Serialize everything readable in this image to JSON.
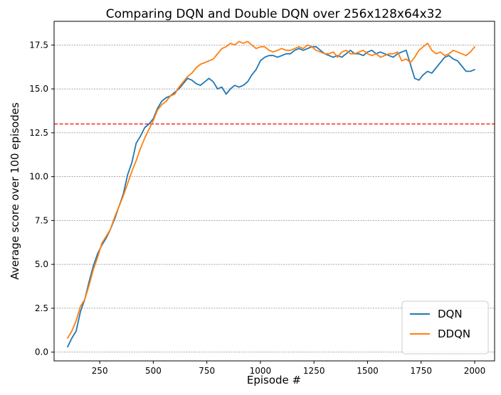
{
  "chart_data": {
    "type": "line",
    "title": "Comparing DQN and Double DQN over 256x128x64x32",
    "xlabel": "Episode #",
    "ylabel": "Average score over 100 episodes",
    "xlim": [
      37,
      2093
    ],
    "ylim": [
      -0.5,
      18.85
    ],
    "xticks": [
      250,
      500,
      750,
      1000,
      1250,
      1500,
      1750,
      2000
    ],
    "xtick_labels": [
      "250",
      "500",
      "750",
      "1000",
      "1250",
      "1500",
      "1750",
      "2000"
    ],
    "yticks": [
      0,
      2.5,
      5,
      7.5,
      10,
      12.5,
      15,
      17.5
    ],
    "ytick_labels": [
      "0.0",
      "2.5",
      "5.0",
      "7.5",
      "10.0",
      "12.5",
      "15.0",
      "17.5"
    ],
    "grid": "horizontal dashed",
    "reference_line": {
      "y": 13,
      "color": "#ff0000",
      "style": "dashed"
    },
    "legend_placement": "bottom-right",
    "series": [
      {
        "name": "DQN",
        "color": "#1f77b4",
        "x": [
          100,
          120,
          140,
          160,
          180,
          200,
          220,
          240,
          260,
          280,
          300,
          320,
          340,
          360,
          380,
          400,
          420,
          440,
          460,
          480,
          500,
          520,
          540,
          560,
          580,
          600,
          620,
          640,
          660,
          680,
          700,
          720,
          740,
          760,
          780,
          800,
          820,
          840,
          860,
          880,
          900,
          920,
          940,
          960,
          980,
          1000,
          1020,
          1040,
          1060,
          1080,
          1100,
          1120,
          1140,
          1160,
          1180,
          1200,
          1220,
          1240,
          1260,
          1280,
          1300,
          1320,
          1340,
          1360,
          1380,
          1400,
          1420,
          1440,
          1460,
          1480,
          1500,
          1520,
          1540,
          1560,
          1580,
          1600,
          1620,
          1640,
          1660,
          1680,
          1700,
          1720,
          1740,
          1760,
          1780,
          1800,
          1820,
          1840,
          1860,
          1880,
          1900,
          1920,
          1940,
          1960,
          1980,
          2000
        ],
        "y": [
          0.3,
          0.8,
          1.2,
          2.3,
          3.0,
          4.0,
          4.9,
          5.6,
          6.1,
          6.5,
          7.0,
          7.6,
          8.3,
          9.0,
          10.1,
          10.8,
          11.9,
          12.3,
          12.8,
          13.0,
          13.3,
          13.9,
          14.3,
          14.5,
          14.6,
          14.8,
          15.0,
          15.3,
          15.6,
          15.5,
          15.3,
          15.2,
          15.4,
          15.6,
          15.4,
          15.0,
          15.1,
          14.7,
          15.0,
          15.2,
          15.1,
          15.2,
          15.4,
          15.8,
          16.1,
          16.6,
          16.8,
          16.9,
          16.9,
          16.8,
          16.9,
          17.0,
          17.0,
          17.2,
          17.3,
          17.2,
          17.3,
          17.4,
          17.4,
          17.2,
          17.0,
          16.9,
          16.8,
          16.9,
          16.8,
          17.0,
          17.2,
          17.0,
          17.0,
          16.9,
          17.1,
          17.2,
          17.0,
          17.1,
          17.0,
          16.9,
          16.8,
          17.0,
          17.1,
          17.2,
          16.4,
          15.6,
          15.5,
          15.8,
          16.0,
          15.9,
          16.2,
          16.5,
          16.8,
          16.9,
          16.7,
          16.6,
          16.3,
          16.0,
          16.0,
          16.1
        ]
      },
      {
        "name": "DDQN",
        "color": "#ff7f0e",
        "x": [
          100,
          120,
          140,
          160,
          180,
          200,
          220,
          240,
          260,
          280,
          300,
          320,
          340,
          360,
          380,
          400,
          420,
          440,
          460,
          480,
          500,
          520,
          540,
          560,
          580,
          600,
          620,
          640,
          660,
          680,
          700,
          720,
          740,
          760,
          780,
          800,
          820,
          840,
          860,
          880,
          900,
          920,
          940,
          960,
          980,
          1000,
          1020,
          1040,
          1060,
          1080,
          1100,
          1120,
          1140,
          1160,
          1180,
          1200,
          1220,
          1240,
          1260,
          1280,
          1300,
          1320,
          1340,
          1360,
          1380,
          1400,
          1420,
          1440,
          1460,
          1480,
          1500,
          1520,
          1540,
          1560,
          1580,
          1600,
          1620,
          1640,
          1660,
          1680,
          1700,
          1720,
          1740,
          1760,
          1780,
          1800,
          1820,
          1840,
          1860,
          1880,
          1900,
          1920,
          1940,
          1960,
          1980,
          2000
        ],
        "y": [
          0.8,
          1.2,
          1.8,
          2.6,
          3.0,
          3.8,
          4.7,
          5.4,
          6.2,
          6.6,
          7.0,
          7.7,
          8.3,
          8.9,
          9.6,
          10.3,
          10.9,
          11.6,
          12.2,
          12.7,
          13.2,
          13.8,
          14.1,
          14.3,
          14.6,
          14.7,
          15.1,
          15.4,
          15.7,
          15.9,
          16.2,
          16.4,
          16.5,
          16.6,
          16.7,
          17.0,
          17.3,
          17.4,
          17.6,
          17.5,
          17.7,
          17.6,
          17.7,
          17.5,
          17.3,
          17.4,
          17.4,
          17.2,
          17.1,
          17.2,
          17.3,
          17.2,
          17.2,
          17.3,
          17.4,
          17.3,
          17.5,
          17.4,
          17.2,
          17.1,
          17.0,
          17.0,
          17.1,
          16.8,
          17.1,
          17.2,
          17.0,
          17.0,
          17.1,
          17.2,
          17.0,
          16.9,
          17.0,
          16.8,
          16.9,
          17.0,
          17.0,
          17.1,
          16.6,
          16.7,
          16.5,
          16.8,
          17.2,
          17.4,
          17.6,
          17.2,
          17.0,
          17.1,
          16.9,
          17.0,
          17.2,
          17.1,
          17.0,
          16.9,
          17.1,
          17.4
        ]
      }
    ]
  }
}
